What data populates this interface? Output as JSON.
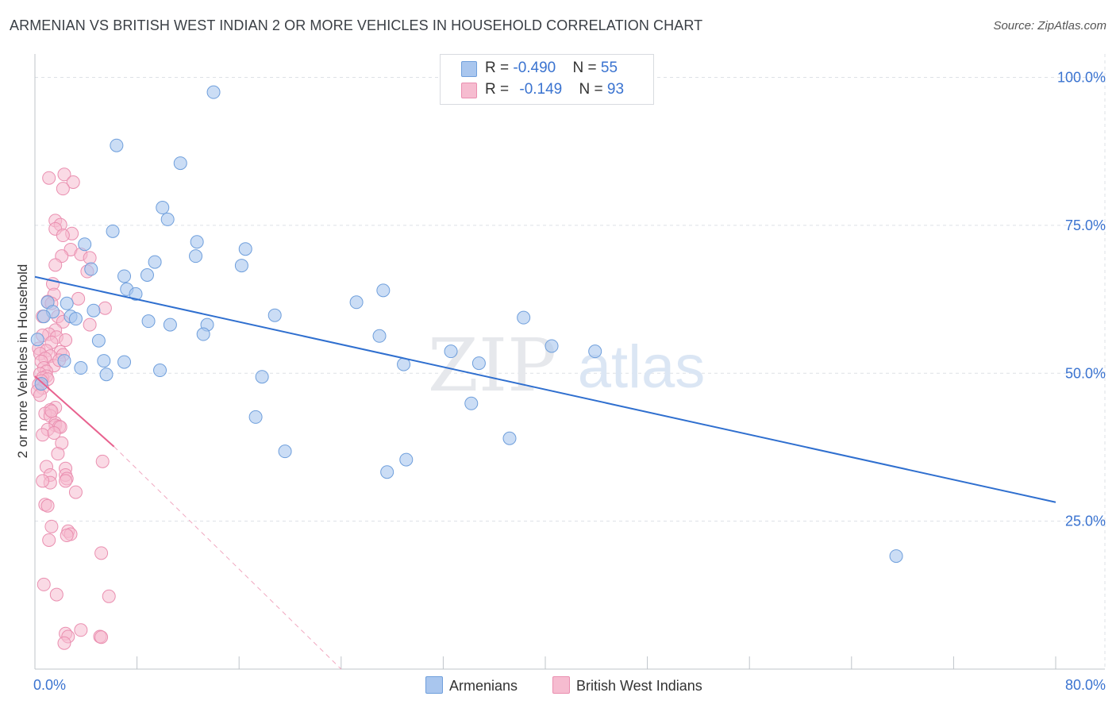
{
  "title": "ARMENIAN VS BRITISH WEST INDIAN 2 OR MORE VEHICLES IN HOUSEHOLD CORRELATION CHART",
  "source": "Source: ZipAtlas.com",
  "watermark": {
    "zip": "ZIP",
    "atlas": "atlas"
  },
  "legend": {
    "rows": [
      {
        "r_label": "R = ",
        "r_value": "-0.490",
        "n_label": "N = ",
        "n_value": "55"
      },
      {
        "r_label": "R = ",
        "r_value": "-0.149",
        "n_label": "N = ",
        "n_value": "93"
      }
    ]
  },
  "bottom_legend": [
    "Armenians",
    "British West Indians"
  ],
  "colors": {
    "blue_fill": "#a9c6ee",
    "blue_stroke": "#6f9fdc",
    "blue_line": "#2f6fcf",
    "pink_fill": "#f6bcd0",
    "pink_stroke": "#ea8fb0",
    "pink_line": "#e8628f",
    "axis_text": "#3a73d0",
    "grid": "#dde1e6"
  },
  "chart_data": {
    "type": "scatter",
    "title": "ARMENIAN VS BRITISH WEST INDIAN 2 OR MORE VEHICLES IN HOUSEHOLD CORRELATION CHART",
    "xlabel": "",
    "ylabel": "2 or more Vehicles in Household",
    "xlim": [
      0,
      80
    ],
    "ylim": [
      0,
      102
    ],
    "x_tick_labels": [
      "0.0%",
      "80.0%"
    ],
    "y_ticks": [
      25,
      50,
      75,
      100
    ],
    "y_tick_labels": [
      "25.0%",
      "50.0%",
      "75.0%",
      "100.0%"
    ],
    "series": [
      {
        "name": "Armenians",
        "R": -0.49,
        "N": 55,
        "points": [
          [
            14.0,
            97.5
          ],
          [
            6.4,
            88.5
          ],
          [
            11.4,
            85.5
          ],
          [
            10.0,
            78
          ],
          [
            10.4,
            76
          ],
          [
            6.1,
            74
          ],
          [
            3.9,
            71.8
          ],
          [
            12.7,
            72.2
          ],
          [
            16.5,
            71
          ],
          [
            12.6,
            69.8
          ],
          [
            9.4,
            68.8
          ],
          [
            16.2,
            68.2
          ],
          [
            4.4,
            67.6
          ],
          [
            7.0,
            66.4
          ],
          [
            8.8,
            66.6
          ],
          [
            7.2,
            64.2
          ],
          [
            7.9,
            63.4
          ],
          [
            27.3,
            64.0
          ],
          [
            25.2,
            62.0
          ],
          [
            1.0,
            62.0
          ],
          [
            2.5,
            61.8
          ],
          [
            1.4,
            60.4
          ],
          [
            4.6,
            60.6
          ],
          [
            0.7,
            59.6
          ],
          [
            2.8,
            59.6
          ],
          [
            3.2,
            59.2
          ],
          [
            18.8,
            59.8
          ],
          [
            38.3,
            59.4
          ],
          [
            8.9,
            58.8
          ],
          [
            10.6,
            58.2
          ],
          [
            13.5,
            58.2
          ],
          [
            13.2,
            56.6
          ],
          [
            27.0,
            56.3
          ],
          [
            5.0,
            55.5
          ],
          [
            40.5,
            54.6
          ],
          [
            0.2,
            55.7
          ],
          [
            43.9,
            53.7
          ],
          [
            32.6,
            53.7
          ],
          [
            2.3,
            52.1
          ],
          [
            5.4,
            52.1
          ],
          [
            7.0,
            51.9
          ],
          [
            28.9,
            51.5
          ],
          [
            34.8,
            51.7
          ],
          [
            3.6,
            50.9
          ],
          [
            9.8,
            50.5
          ],
          [
            5.6,
            49.8
          ],
          [
            17.8,
            49.4
          ],
          [
            0.5,
            48.2
          ],
          [
            34.2,
            44.9
          ],
          [
            17.3,
            42.6
          ],
          [
            37.2,
            39.0
          ],
          [
            19.6,
            36.8
          ],
          [
            29.1,
            35.4
          ],
          [
            27.6,
            33.3
          ],
          [
            67.5,
            19.1
          ]
        ],
        "trend": {
          "x": [
            0,
            80
          ],
          "y": [
            66.3,
            28.2
          ]
        }
      },
      {
        "name": "British West Indians",
        "R": -0.149,
        "N": 93,
        "points": [
          [
            2.3,
            83.6
          ],
          [
            1.1,
            83.0
          ],
          [
            3.0,
            82.3
          ],
          [
            2.2,
            81.2
          ],
          [
            1.6,
            75.8
          ],
          [
            2.0,
            75.1
          ],
          [
            1.6,
            74.4
          ],
          [
            2.9,
            73.6
          ],
          [
            2.2,
            73.3
          ],
          [
            2.8,
            70.9
          ],
          [
            3.6,
            70.1
          ],
          [
            2.1,
            69.8
          ],
          [
            4.3,
            69.5
          ],
          [
            1.6,
            68.3
          ],
          [
            4.1,
            67.2
          ],
          [
            1.4,
            65.1
          ],
          [
            1.5,
            63.3
          ],
          [
            3.4,
            62.6
          ],
          [
            1.0,
            62.1
          ],
          [
            1.3,
            61.8
          ],
          [
            5.5,
            61.0
          ],
          [
            0.6,
            59.6
          ],
          [
            1.8,
            59.6
          ],
          [
            2.2,
            58.7
          ],
          [
            4.3,
            58.2
          ],
          [
            1.6,
            57.3
          ],
          [
            1.1,
            56.6
          ],
          [
            0.6,
            56.4
          ],
          [
            1.7,
            56.1
          ],
          [
            2.4,
            55.6
          ],
          [
            1.3,
            55.2
          ],
          [
            0.3,
            54.2
          ],
          [
            0.9,
            53.8
          ],
          [
            2.0,
            53.6
          ],
          [
            0.4,
            53.3
          ],
          [
            1.2,
            52.9
          ],
          [
            2.2,
            53.1
          ],
          [
            0.8,
            52.5
          ],
          [
            0.5,
            52.0
          ],
          [
            1.5,
            51.3
          ],
          [
            0.7,
            50.9
          ],
          [
            0.9,
            50.3
          ],
          [
            0.4,
            49.9
          ],
          [
            0.9,
            49.5
          ],
          [
            0.6,
            49.2
          ],
          [
            1.0,
            49.0
          ],
          [
            0.5,
            48.7
          ],
          [
            0.3,
            48.1
          ],
          [
            0.6,
            47.5
          ],
          [
            0.2,
            47.0
          ],
          [
            0.4,
            46.3
          ],
          [
            1.6,
            44.2
          ],
          [
            1.2,
            43.8
          ],
          [
            0.8,
            43.2
          ],
          [
            1.2,
            42.8
          ],
          [
            1.6,
            41.6
          ],
          [
            1.6,
            41.2
          ],
          [
            1.9,
            41.0
          ],
          [
            2.0,
            40.9
          ],
          [
            1.0,
            40.5
          ],
          [
            0.6,
            39.6
          ],
          [
            1.5,
            39.9
          ],
          [
            2.1,
            38.2
          ],
          [
            1.8,
            36.4
          ],
          [
            5.3,
            35.1
          ],
          [
            0.9,
            34.2
          ],
          [
            2.4,
            33.9
          ],
          [
            1.2,
            32.8
          ],
          [
            2.4,
            32.8
          ],
          [
            2.5,
            32.2
          ],
          [
            2.4,
            31.8
          ],
          [
            1.2,
            31.5
          ],
          [
            0.6,
            31.8
          ],
          [
            3.2,
            29.9
          ],
          [
            0.8,
            27.8
          ],
          [
            1.0,
            27.6
          ],
          [
            1.3,
            24.1
          ],
          [
            2.6,
            23.3
          ],
          [
            2.8,
            22.8
          ],
          [
            2.5,
            22.6
          ],
          [
            1.1,
            21.8
          ],
          [
            5.2,
            19.6
          ],
          [
            0.7,
            14.3
          ],
          [
            1.7,
            12.6
          ],
          [
            5.8,
            12.3
          ],
          [
            3.6,
            6.6
          ],
          [
            2.4,
            6.0
          ],
          [
            2.6,
            5.5
          ],
          [
            5.1,
            5.5
          ],
          [
            5.2,
            5.4
          ],
          [
            2.3,
            4.4
          ],
          [
            1.3,
            43.6
          ],
          [
            1.9,
            52.2
          ]
        ],
        "trend_solid": {
          "x": [
            0,
            6.2
          ],
          "y": [
            49.5,
            37.6
          ]
        },
        "trend_dashed": {
          "x": [
            6.2,
            24.0
          ],
          "y": [
            37.6,
            0
          ]
        }
      }
    ]
  }
}
